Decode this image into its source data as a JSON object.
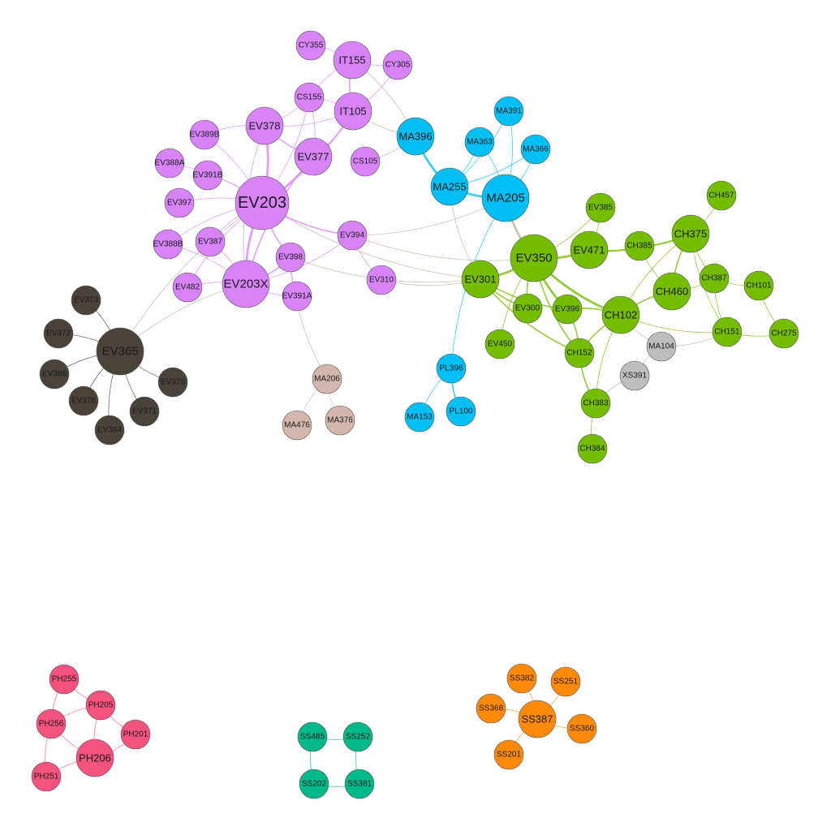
{
  "colors": {
    "purple": "#d884f8",
    "blue": "#00bff5",
    "green": "#74bd00",
    "dark": "#4a433b",
    "tan": "#d3b6ac",
    "gray": "#bebebe",
    "pink": "#f5537f",
    "teal": "#00b98a",
    "orange": "#ff8a0a"
  },
  "nodes": [
    {
      "id": "EV203",
      "group": "purple",
      "size": "xl"
    },
    {
      "id": "EV203X",
      "group": "purple",
      "size": "l"
    },
    {
      "id": "EV378",
      "group": "purple",
      "size": "m"
    },
    {
      "id": "EV377",
      "group": "purple",
      "size": "m"
    },
    {
      "id": "IT155",
      "group": "purple",
      "size": "m"
    },
    {
      "id": "IT105",
      "group": "purple",
      "size": "m"
    },
    {
      "id": "CY355",
      "group": "purple",
      "size": "s"
    },
    {
      "id": "CY305",
      "group": "purple",
      "size": "s"
    },
    {
      "id": "CS155",
      "group": "purple",
      "size": "s"
    },
    {
      "id": "CS105",
      "group": "purple",
      "size": "s"
    },
    {
      "id": "EV389B",
      "group": "purple",
      "size": "s"
    },
    {
      "id": "EV388A",
      "group": "purple",
      "size": "s"
    },
    {
      "id": "EV391B",
      "group": "purple",
      "size": "s"
    },
    {
      "id": "EV397",
      "group": "purple",
      "size": "s"
    },
    {
      "id": "EV388B",
      "group": "purple",
      "size": "s"
    },
    {
      "id": "EV387",
      "group": "purple",
      "size": "s"
    },
    {
      "id": "EV482",
      "group": "purple",
      "size": "s"
    },
    {
      "id": "EV398",
      "group": "purple",
      "size": "s"
    },
    {
      "id": "EV391A",
      "group": "purple",
      "size": "s"
    },
    {
      "id": "EV394",
      "group": "purple",
      "size": "s"
    },
    {
      "id": "EV310",
      "group": "purple",
      "size": "s"
    },
    {
      "id": "MA396",
      "group": "blue",
      "size": "m"
    },
    {
      "id": "MA391",
      "group": "blue",
      "size": "s"
    },
    {
      "id": "MA363",
      "group": "blue",
      "size": "s"
    },
    {
      "id": "MA366",
      "group": "blue",
      "size": "s"
    },
    {
      "id": "MA255",
      "group": "blue",
      "size": "m"
    },
    {
      "id": "MA205",
      "group": "blue",
      "size": "l"
    },
    {
      "id": "PL396",
      "group": "blue",
      "size": "s"
    },
    {
      "id": "MA153",
      "group": "blue",
      "size": "s"
    },
    {
      "id": "PL100",
      "group": "blue",
      "size": "s"
    },
    {
      "id": "EV301",
      "group": "green",
      "size": "m"
    },
    {
      "id": "EV350",
      "group": "green",
      "size": "l"
    },
    {
      "id": "EV471",
      "group": "green",
      "size": "m"
    },
    {
      "id": "EV385",
      "group": "green",
      "size": "s"
    },
    {
      "id": "CH385",
      "group": "green",
      "size": "s"
    },
    {
      "id": "CH375",
      "group": "green",
      "size": "m"
    },
    {
      "id": "CH457",
      "group": "green",
      "size": "s"
    },
    {
      "id": "CH387",
      "group": "green",
      "size": "s"
    },
    {
      "id": "CH460",
      "group": "green",
      "size": "m"
    },
    {
      "id": "CH101",
      "group": "green",
      "size": "s"
    },
    {
      "id": "EV300",
      "group": "green",
      "size": "s"
    },
    {
      "id": "EV396",
      "group": "green",
      "size": "s"
    },
    {
      "id": "CH102",
      "group": "green",
      "size": "m"
    },
    {
      "id": "CH151",
      "group": "green",
      "size": "s"
    },
    {
      "id": "CH275",
      "group": "green",
      "size": "s"
    },
    {
      "id": "EV450",
      "group": "green",
      "size": "s"
    },
    {
      "id": "CH152",
      "group": "green",
      "size": "s"
    },
    {
      "id": "CH383",
      "group": "green",
      "size": "s"
    },
    {
      "id": "CH384",
      "group": "green",
      "size": "s"
    },
    {
      "id": "MA104",
      "group": "gray",
      "size": "s"
    },
    {
      "id": "XS391",
      "group": "gray",
      "size": "s"
    },
    {
      "id": "EV365",
      "group": "dark",
      "size": "l"
    },
    {
      "id": "EV373",
      "group": "dark",
      "size": "s"
    },
    {
      "id": "EV372",
      "group": "dark",
      "size": "s"
    },
    {
      "id": "EV386",
      "group": "dark",
      "size": "s"
    },
    {
      "id": "EV376",
      "group": "dark",
      "size": "s"
    },
    {
      "id": "EV384",
      "group": "dark",
      "size": "s"
    },
    {
      "id": "EV371",
      "group": "dark",
      "size": "s"
    },
    {
      "id": "EV375",
      "group": "dark",
      "size": "s"
    },
    {
      "id": "MA206",
      "group": "tan",
      "size": "s"
    },
    {
      "id": "MA476",
      "group": "tan",
      "size": "s"
    },
    {
      "id": "MA376",
      "group": "tan",
      "size": "s"
    },
    {
      "id": "PH255",
      "group": "pink",
      "size": "s"
    },
    {
      "id": "PH205",
      "group": "pink",
      "size": "s"
    },
    {
      "id": "PH256",
      "group": "pink",
      "size": "s"
    },
    {
      "id": "PH201",
      "group": "pink",
      "size": "s"
    },
    {
      "id": "PH206",
      "group": "pink",
      "size": "m"
    },
    {
      "id": "PH251",
      "group": "pink",
      "size": "s"
    },
    {
      "id": "SS485",
      "group": "teal",
      "size": "s"
    },
    {
      "id": "SS252",
      "group": "teal",
      "size": "s"
    },
    {
      "id": "SS202",
      "group": "teal",
      "size": "s"
    },
    {
      "id": "SS381",
      "group": "teal",
      "size": "s"
    },
    {
      "id": "SS382",
      "group": "orange",
      "size": "s"
    },
    {
      "id": "SS251",
      "group": "orange",
      "size": "s"
    },
    {
      "id": "SS368",
      "group": "orange",
      "size": "s"
    },
    {
      "id": "SS387",
      "group": "orange",
      "size": "m"
    },
    {
      "id": "SS360",
      "group": "orange",
      "size": "s"
    },
    {
      "id": "SS201",
      "group": "orange",
      "size": "s"
    }
  ],
  "edges": [
    [
      "EV203",
      "EV378",
      3
    ],
    [
      "EV203",
      "EV377",
      3
    ],
    [
      "EV203",
      "EV203X",
      3
    ],
    [
      "EV203",
      "EV394",
      2
    ],
    [
      "EV203",
      "EV398",
      2
    ],
    [
      "EV203",
      "EV389B",
      1
    ],
    [
      "EV203",
      "EV388A",
      1
    ],
    [
      "EV203",
      "EV391B",
      1
    ],
    [
      "EV203",
      "EV397",
      1
    ],
    [
      "EV203",
      "EV387",
      1
    ],
    [
      "EV203",
      "EV388B",
      1
    ],
    [
      "EV203",
      "EV482",
      1
    ],
    [
      "EV203",
      "IT105",
      2
    ],
    [
      "EV203",
      "CS155",
      1
    ],
    [
      "EV203",
      "EV301",
      1
    ],
    [
      "EV203",
      "EV365",
      1
    ],
    [
      "EV378",
      "EV377",
      2
    ],
    [
      "EV378",
      "IT105",
      1
    ],
    [
      "EV378",
      "CS155",
      1
    ],
    [
      "EV378",
      "EV203X",
      1
    ],
    [
      "EV378",
      "EV389B",
      1
    ],
    [
      "EV377",
      "IT105",
      2
    ],
    [
      "EV377",
      "CS155",
      1
    ],
    [
      "EV377",
      "EV203X",
      2
    ],
    [
      "IT155",
      "IT105",
      2
    ],
    [
      "IT155",
      "CY355",
      1
    ],
    [
      "IT155",
      "CY305",
      1
    ],
    [
      "IT155",
      "CS155",
      1
    ],
    [
      "IT105",
      "CS155",
      1
    ],
    [
      "IT105",
      "MA396",
      1
    ],
    [
      "IT105",
      "CY305",
      1
    ],
    [
      "CS105",
      "MA396",
      1
    ],
    [
      "EV203X",
      "EV398",
      2
    ],
    [
      "EV203X",
      "EV391A",
      1
    ],
    [
      "EV203X",
      "EV387",
      1
    ],
    [
      "EV203X",
      "EV482",
      1
    ],
    [
      "EV203X",
      "EV365",
      1
    ],
    [
      "EV203X",
      "EV394",
      1
    ],
    [
      "EV203X",
      "EV388B",
      1
    ],
    [
      "EV398",
      "EV391A",
      1
    ],
    [
      "EV398",
      "EV301",
      1
    ],
    [
      "EV398",
      "MA206",
      1
    ],
    [
      "EV394",
      "EV310",
      1
    ],
    [
      "EV394",
      "EV350",
      1
    ],
    [
      "EV394",
      "MA205",
      1
    ],
    [
      "MA396",
      "MA255",
      3
    ],
    [
      "MA396",
      "IT155",
      1
    ],
    [
      "MA255",
      "MA205",
      3
    ],
    [
      "MA255",
      "MA363",
      1
    ],
    [
      "MA255",
      "MA391",
      1
    ],
    [
      "MA255",
      "MA366",
      1
    ],
    [
      "MA255",
      "EV301",
      1
    ],
    [
      "MA205",
      "MA363",
      1
    ],
    [
      "MA205",
      "MA391",
      1
    ],
    [
      "MA205",
      "MA366",
      1
    ],
    [
      "MA205",
      "EV350",
      3
    ],
    [
      "MA205",
      "PL396",
      1
    ],
    [
      "PL396",
      "MA153",
      1
    ],
    [
      "PL396",
      "PL100",
      2
    ],
    [
      "EV310",
      "EV301",
      1
    ],
    [
      "EV301",
      "EV350",
      3
    ],
    [
      "EV301",
      "EV300",
      2
    ],
    [
      "EV301",
      "EV396",
      2
    ],
    [
      "EV301",
      "CH152",
      2
    ],
    [
      "EV350",
      "EV471",
      3
    ],
    [
      "EV350",
      "EV300",
      2
    ],
    [
      "EV350",
      "EV396",
      3
    ],
    [
      "EV350",
      "CH102",
      3
    ],
    [
      "EV350",
      "CH152",
      2
    ],
    [
      "EV350",
      "EV385",
      1
    ],
    [
      "EV350",
      "EV450",
      1
    ],
    [
      "EV471",
      "CH385",
      2
    ],
    [
      "EV471",
      "EV385",
      1
    ],
    [
      "EV471",
      "CH375",
      2
    ],
    [
      "CH385",
      "CH375",
      2
    ],
    [
      "CH385",
      "CH460",
      1
    ],
    [
      "CH375",
      "CH457",
      1
    ],
    [
      "CH375",
      "CH387",
      1
    ],
    [
      "CH375",
      "CH460",
      2
    ],
    [
      "CH375",
      "CH102",
      1
    ],
    [
      "CH375",
      "CH151",
      1
    ],
    [
      "CH460",
      "CH387",
      1
    ],
    [
      "CH460",
      "CH102",
      2
    ],
    [
      "CH387",
      "CH101",
      1
    ],
    [
      "CH387",
      "CH151",
      1
    ],
    [
      "CH101",
      "CH275",
      1
    ],
    [
      "CH102",
      "EV396",
      2
    ],
    [
      "CH102",
      "CH152",
      2
    ],
    [
      "CH102",
      "CH151",
      1
    ],
    [
      "CH102",
      "MA104",
      1
    ],
    [
      "CH102",
      "CH383",
      1
    ],
    [
      "CH151",
      "CH275",
      1
    ],
    [
      "CH152",
      "CH383",
      2
    ],
    [
      "CH152",
      "EV396",
      2
    ],
    [
      "CH383",
      "CH384",
      1
    ],
    [
      "MA104",
      "XS391",
      1
    ],
    [
      "MA104",
      "CH151",
      1
    ],
    [
      "XS391",
      "CH383",
      1
    ],
    [
      "EV365",
      "EV373",
      1
    ],
    [
      "EV365",
      "EV372",
      1
    ],
    [
      "EV365",
      "EV386",
      1
    ],
    [
      "EV365",
      "EV376",
      1
    ],
    [
      "EV365",
      "EV384",
      1
    ],
    [
      "EV365",
      "EV371",
      1
    ],
    [
      "EV365",
      "EV375",
      1
    ],
    [
      "MA206",
      "MA476",
      1
    ],
    [
      "MA206",
      "MA376",
      1
    ],
    [
      "PH255",
      "PH256",
      1
    ],
    [
      "PH255",
      "PH205",
      1
    ],
    [
      "PH205",
      "PH256",
      1
    ],
    [
      "PH205",
      "PH206",
      1
    ],
    [
      "PH256",
      "PH206",
      1
    ],
    [
      "PH256",
      "PH251",
      1
    ],
    [
      "PH206",
      "PH201",
      1
    ],
    [
      "PH206",
      "PH251",
      1
    ],
    [
      "PH205",
      "PH201",
      1
    ],
    [
      "SS485",
      "SS252",
      1
    ],
    [
      "SS485",
      "SS202",
      1
    ],
    [
      "SS252",
      "SS381",
      1
    ],
    [
      "SS202",
      "SS381",
      1
    ],
    [
      "SS387",
      "SS382",
      1
    ],
    [
      "SS387",
      "SS251",
      1
    ],
    [
      "SS387",
      "SS368",
      1
    ],
    [
      "SS387",
      "SS360",
      1
    ],
    [
      "SS387",
      "SS201",
      1
    ]
  ]
}
